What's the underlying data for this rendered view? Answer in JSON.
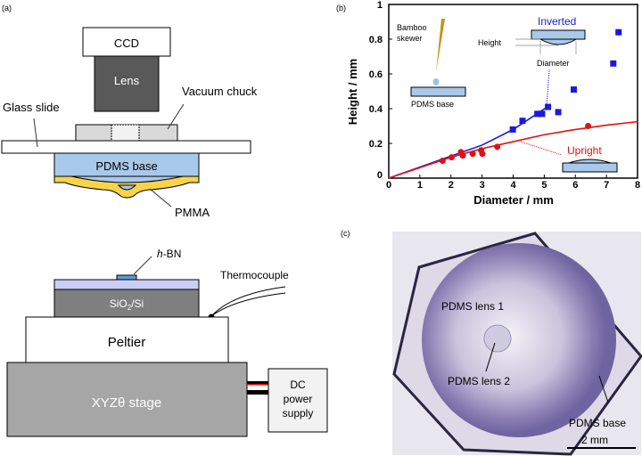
{
  "panel_a": {
    "label": "(a)",
    "ccd": "CCD",
    "lens": "Lens",
    "vacuum_chuck": "Vacuum chuck",
    "glass_slide": "Glass slide",
    "pdms_base": "PDMS base",
    "pmma": "PMMA"
  },
  "panel_a2": {
    "hbn_italic": "h",
    "hbn_rest": "-BN",
    "thermocouple": "Thermocouple",
    "sio2": "SiO",
    "sio2_sub": "2",
    "sio2_rest": "/Si",
    "peltier": "Peltier",
    "stage": "XYZθ stage",
    "dc1": "DC",
    "dc2": "power",
    "dc3": "supply"
  },
  "panel_c": {
    "label": "(c)",
    "lens1": "PDMS lens 1",
    "lens2": "PDMS lens 2",
    "base": "PDMS base",
    "scale": "2 mm"
  },
  "chart_data": {
    "type": "scatter",
    "panel_label": "(b)",
    "xlabel": "Diameter / mm",
    "ylabel": "Height / mm",
    "xlim": [
      0,
      8
    ],
    "ylim": [
      0,
      1
    ],
    "xticks": [
      "0",
      "1",
      "2",
      "3",
      "4",
      "5",
      "6",
      "7",
      "8"
    ],
    "yticks": [
      "0",
      "0.2",
      "0.4",
      "0.6",
      "0.8",
      "1"
    ],
    "series": [
      {
        "name": "Inverted",
        "color": "#1a1adc",
        "marker": "square",
        "x": [
          3.99,
          4.3,
          4.78,
          4.93,
          5.12,
          5.45,
          5.95,
          7.22,
          7.39
        ],
        "y": [
          0.28,
          0.33,
          0.37,
          0.37,
          0.41,
          0.38,
          0.51,
          0.66,
          0.84
        ],
        "fit_x": [
          0,
          3.0,
          4.0,
          5.1
        ],
        "fit_y": [
          0,
          0.19,
          0.28,
          0.41
        ]
      },
      {
        "name": "Upright",
        "color": "#e01010",
        "marker": "circle",
        "x": [
          1.73,
          2.02,
          2.32,
          2.38,
          2.7,
          2.97,
          3.01,
          3.49,
          6.41
        ],
        "y": [
          0.1,
          0.12,
          0.15,
          0.13,
          0.14,
          0.16,
          0.14,
          0.18,
          0.3
        ],
        "fit_x": [
          0,
          1,
          2,
          3,
          4,
          5,
          6,
          7,
          8
        ],
        "fit_y": [
          0,
          0.06,
          0.12,
          0.17,
          0.21,
          0.25,
          0.28,
          0.305,
          0.325
        ]
      }
    ],
    "annotations": {
      "bamboo1": "Bamboo",
      "bamboo2": "skewer",
      "pdms_base": "PDMS base",
      "height": "Height",
      "diameter": "Diameter"
    }
  }
}
